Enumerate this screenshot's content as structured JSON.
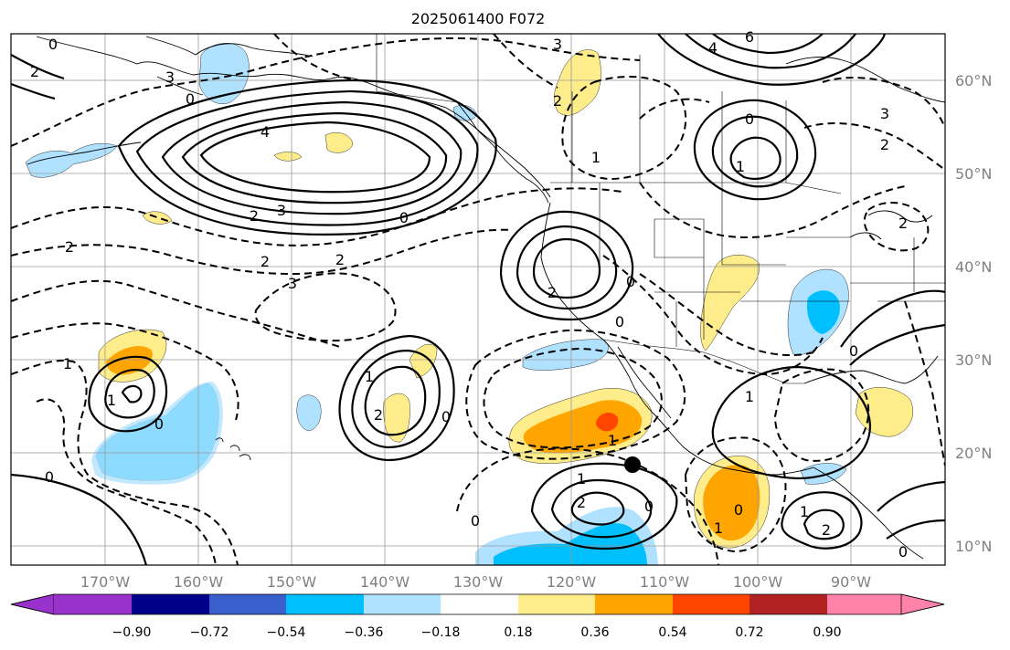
{
  "title": "2025061400 F072",
  "colors": {
    "bins": [
      "#9932CC",
      "#00008B",
      "#3A5FCD",
      "#00BFFF",
      "#B0E2FF",
      "#FFFFFF",
      "#FFEC8B",
      "#FFA500",
      "#FF4500",
      "#B22222",
      "#FF82AB"
    ],
    "contour": "#000000",
    "grid": "#9a9a9a"
  },
  "lat_labels": [
    "60°N",
    "50°N",
    "40°N",
    "30°N",
    "20°N",
    "10°N"
  ],
  "lon_labels": [
    "170°W",
    "160°W",
    "150°W",
    "140°W",
    "130°W",
    "120°W",
    "110°W",
    "100°W",
    "90°W"
  ],
  "colorbar": {
    "ticks": [
      "−0.90",
      "−0.72",
      "−0.54",
      "−0.36",
      "−0.18",
      "0.18",
      "0.36",
      "0.54",
      "0.72",
      "0.90"
    ]
  },
  "contour_labels": {
    "c1": "0",
    "c2": "2",
    "c3": "4",
    "c4": "3",
    "c5": "2",
    "c6": "0",
    "c7": "2",
    "c8": "2",
    "c9": "3",
    "c10": "0",
    "c11": "3",
    "c12": "1",
    "c13": "0",
    "c14": "1",
    "c15": "2",
    "c16": "2",
    "c17": "0",
    "c18": "1",
    "c19": "0",
    "c20": "3",
    "c21": "2",
    "c22": "1",
    "c23": "4",
    "c24": "6",
    "c25": "0",
    "c26": "1",
    "c27": "2",
    "c28": "2",
    "c29": "3",
    "c30": "0",
    "c31": "2",
    "c32": "0",
    "c33": "0",
    "c34": "1",
    "c35": "1",
    "c36": "2",
    "c37": "0",
    "c38": "0",
    "c39": "1",
    "c40": "0",
    "c41": "2",
    "c42": "0",
    "c43": "1",
    "c44": "1"
  }
}
